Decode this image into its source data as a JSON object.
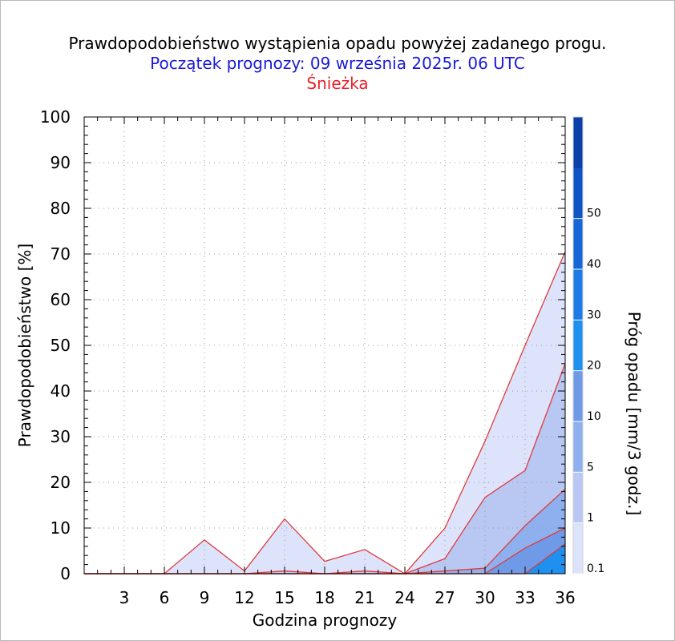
{
  "header": {
    "title": "Prawdopodobieństwo wystąpienia opadu powyżej zadanego progu.",
    "subtitle": "Początek prognozy: 09 września 2025r. 06 UTC",
    "location": "Śnieżka"
  },
  "colors": {
    "subtitle": "#1a1ad6",
    "location": "#e8202a",
    "series_line": "#e03a3a"
  },
  "chart_data": {
    "type": "area",
    "xlabel": "Godzina prognozy",
    "ylabel": "Prawdopodobieństwo [%]",
    "xlim": [
      0,
      36
    ],
    "ylim": [
      0,
      100
    ],
    "x_ticks": [
      3,
      6,
      9,
      12,
      15,
      18,
      21,
      24,
      27,
      30,
      33,
      36
    ],
    "y_ticks": [
      0,
      10,
      20,
      30,
      40,
      50,
      60,
      70,
      80,
      90,
      100
    ],
    "grid": true,
    "x": [
      0,
      3,
      6,
      9,
      12,
      15,
      18,
      21,
      24,
      27,
      30,
      33,
      36
    ],
    "series": [
      {
        "name": "0.1",
        "color": "#dde3fb",
        "values": [
          0,
          0,
          0,
          7.4,
          0.6,
          12,
          2.7,
          5.3,
          0,
          10,
          29,
          50,
          70.5
        ]
      },
      {
        "name": "1",
        "color": "#b8c8f2",
        "values": [
          0,
          0,
          0,
          0,
          0,
          0.6,
          0,
          0.6,
          0,
          3.3,
          16.7,
          22.6,
          46
        ]
      },
      {
        "name": "5",
        "color": "#8fb0ee",
        "values": [
          0,
          0,
          0,
          0,
          0,
          0,
          0,
          0,
          0,
          0.6,
          1.2,
          10.5,
          18.5
        ]
      },
      {
        "name": "10",
        "color": "#6f9ae8",
        "values": [
          0,
          0,
          0,
          0,
          0,
          0,
          0,
          0,
          0,
          0,
          0,
          5.6,
          10
        ]
      },
      {
        "name": "20",
        "color": "#1e90f0",
        "values": [
          0,
          0,
          0,
          0,
          0,
          0,
          0,
          0,
          0,
          0,
          0,
          0,
          6.5
        ]
      }
    ],
    "colorbar": {
      "label": "Próg opadu [mm/3 godz.]",
      "tick_labels": [
        "0.1",
        "1",
        "5",
        "10",
        "20",
        "30",
        "40",
        "50"
      ],
      "colors": [
        "#dde3fb",
        "#b8c8f2",
        "#8fb0ee",
        "#6f9ae8",
        "#1e90f0",
        "#1c7be6",
        "#1566d6",
        "#0f54c4",
        "#0a40a8"
      ]
    }
  }
}
